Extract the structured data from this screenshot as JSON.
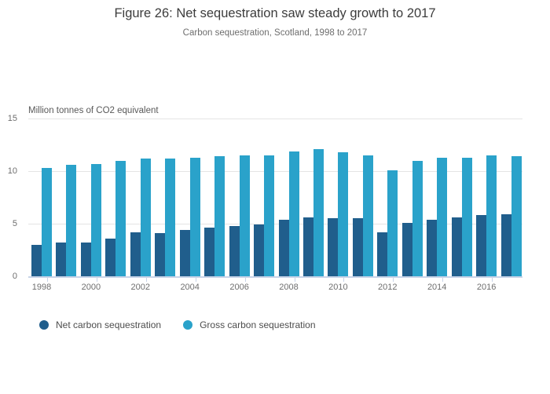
{
  "chart": {
    "title": "Figure 26: Net sequestration saw steady growth to 2017",
    "subtitle": "Carbon sequestration, Scotland, 1998 to 2017",
    "ylabel": "Million tonnes of CO2 equivalent"
  },
  "chart_data": {
    "type": "bar",
    "title": "Figure 26: Net sequestration saw steady growth to 2017",
    "subtitle": "Carbon sequestration, Scotland, 1998 to 2017",
    "ylabel": "Million tonnes of CO2 equivalent",
    "xlabel": "",
    "ylim": [
      0,
      15
    ],
    "yticks": [
      0,
      5,
      10,
      15
    ],
    "grid": true,
    "legend_position": "bottom",
    "categories": [
      1998,
      1999,
      2000,
      2001,
      2002,
      2003,
      2004,
      2005,
      2006,
      2007,
      2008,
      2009,
      2010,
      2011,
      2012,
      2013,
      2014,
      2015,
      2016,
      2017
    ],
    "xtick_labeled_years": [
      1998,
      2000,
      2002,
      2004,
      2006,
      2008,
      2010,
      2012,
      2014,
      2016
    ],
    "series": [
      {
        "name": "Net carbon sequestration",
        "color": "#205e8c",
        "values": [
          3.0,
          3.2,
          3.2,
          3.6,
          4.2,
          4.1,
          4.4,
          4.6,
          4.8,
          4.9,
          5.4,
          5.6,
          5.5,
          5.5,
          4.2,
          5.1,
          5.4,
          5.6,
          5.8,
          5.9
        ]
      },
      {
        "name": "Gross carbon sequestration",
        "color": "#2aa2ca",
        "values": [
          10.3,
          10.6,
          10.7,
          11.0,
          11.2,
          11.2,
          11.3,
          11.4,
          11.5,
          11.5,
          11.9,
          12.1,
          11.8,
          11.5,
          10.1,
          11.0,
          11.3,
          11.3,
          11.5,
          11.4
        ]
      }
    ],
    "colors": {
      "axis_line": "#c8d4e8",
      "gridline": "#e4e4e4",
      "title_text": "#3c3c3c",
      "muted_text": "#6e6e6e"
    }
  }
}
